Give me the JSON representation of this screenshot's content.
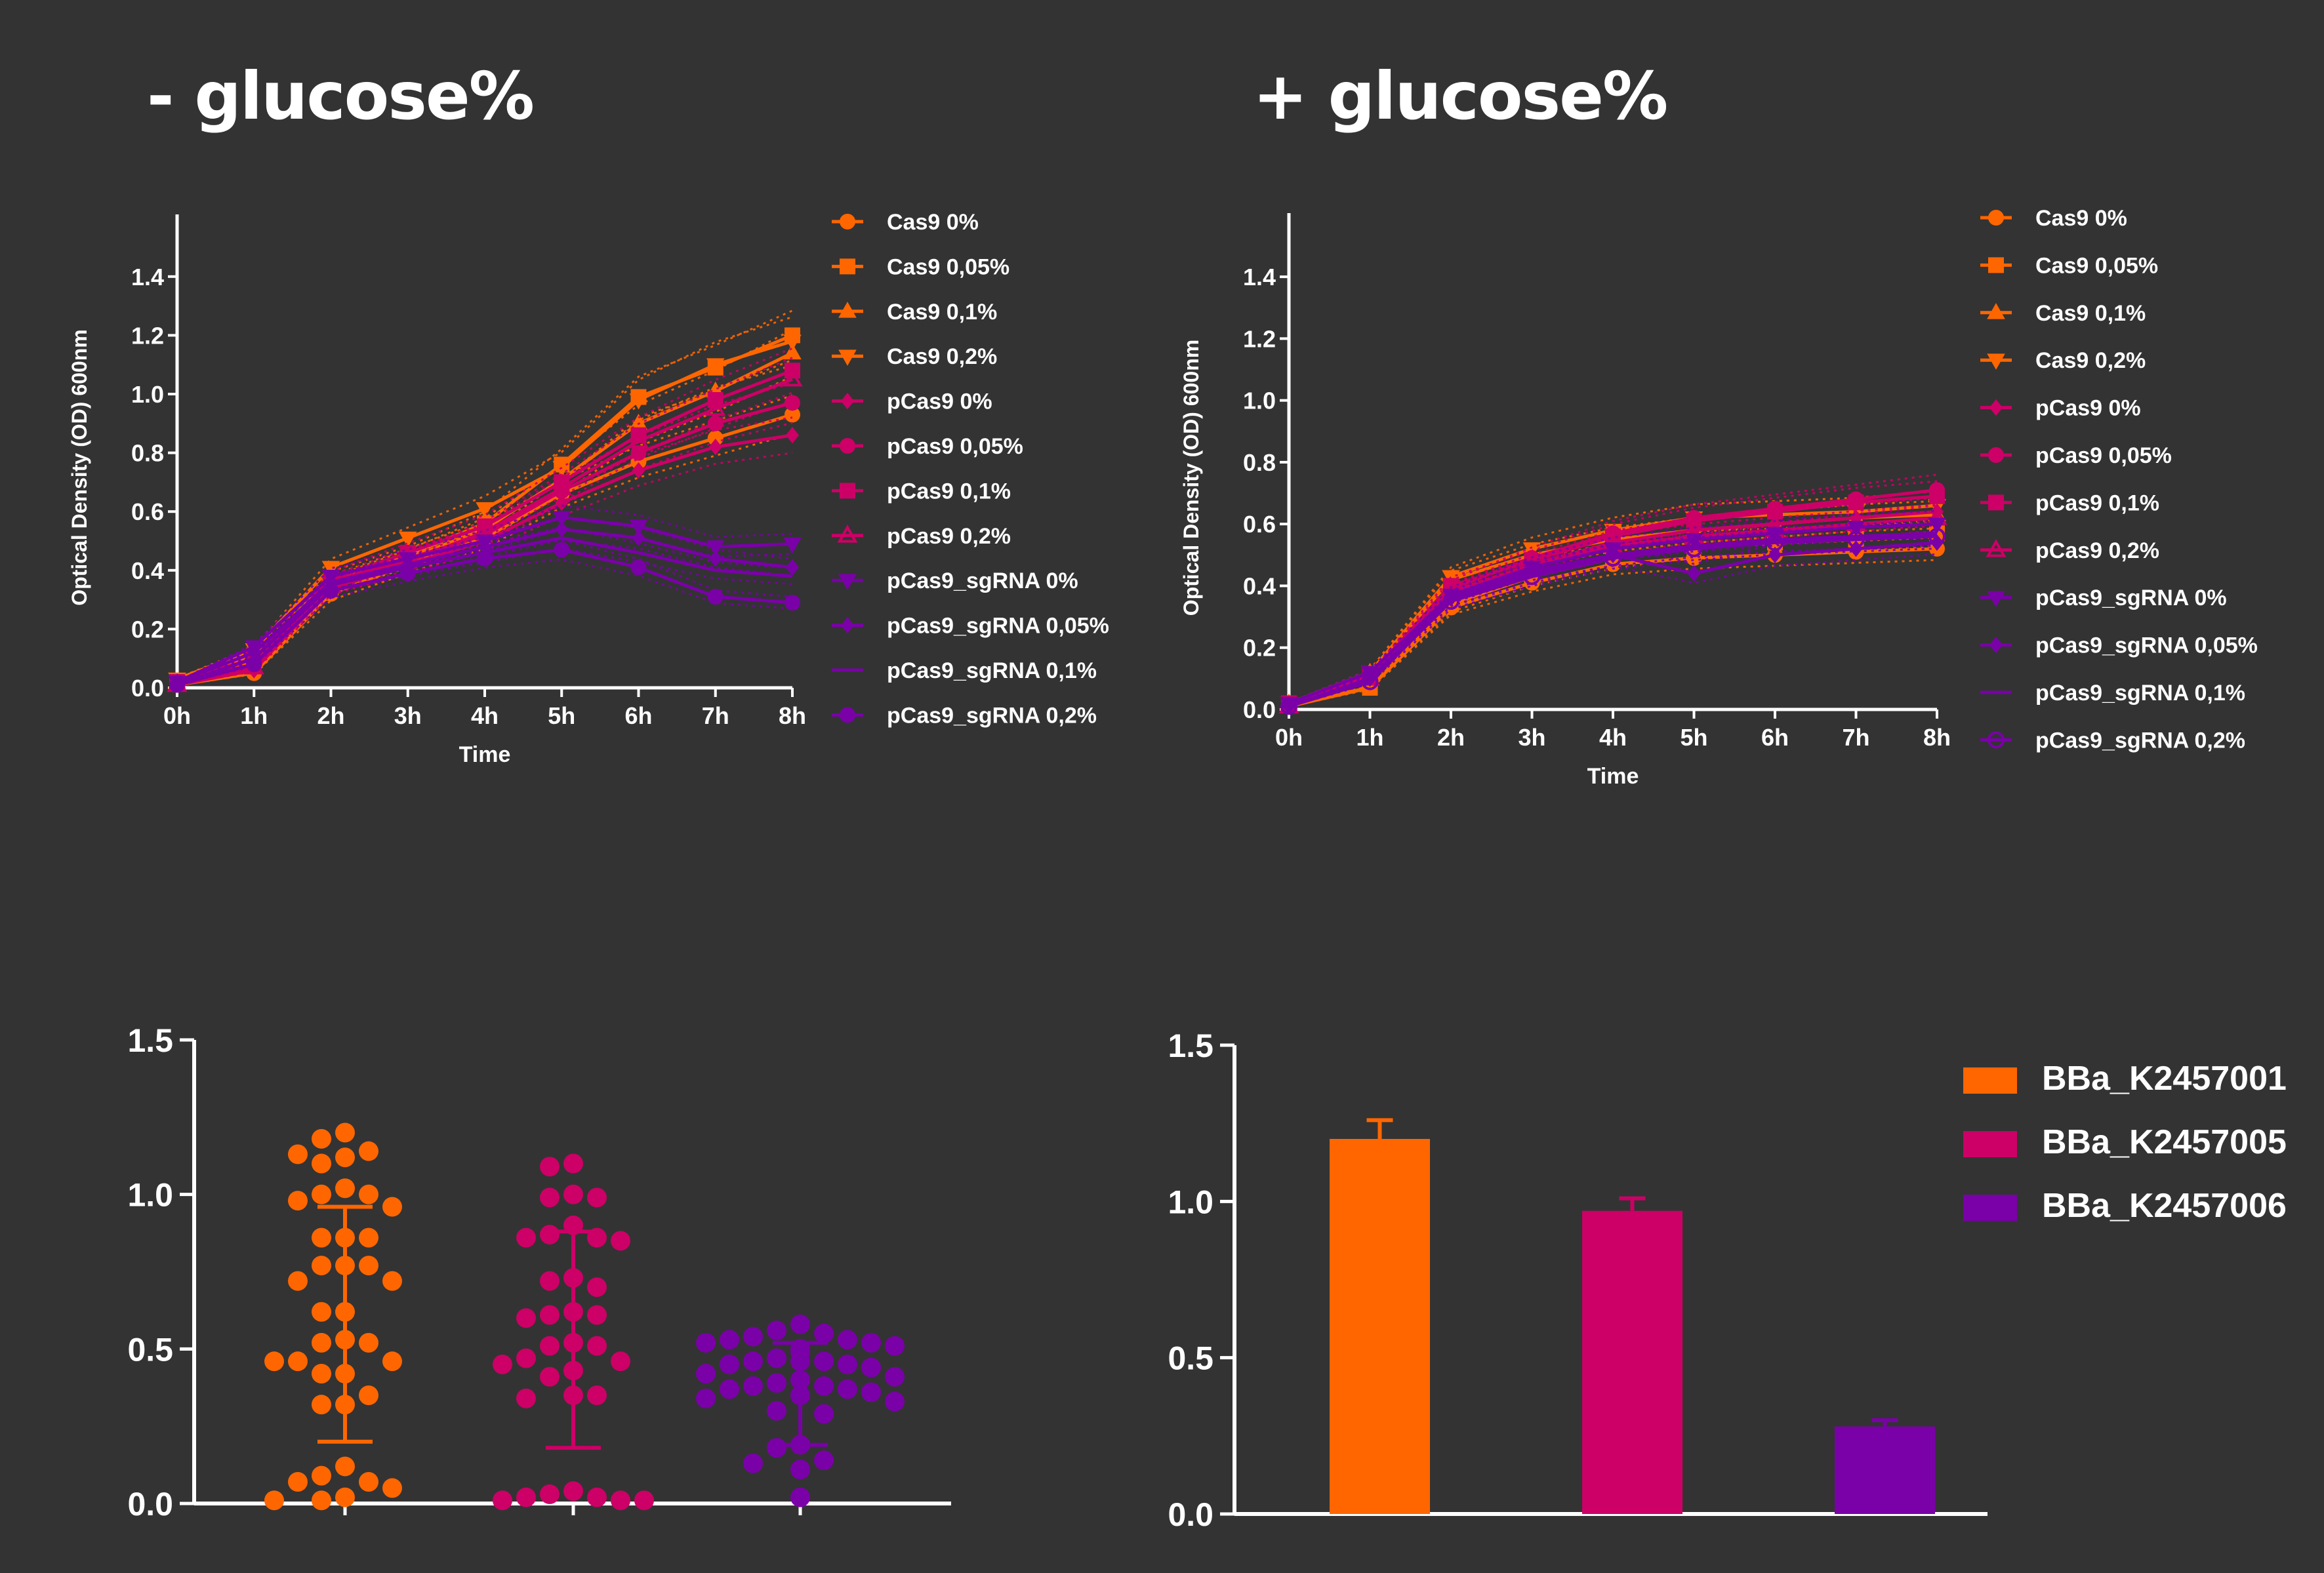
{
  "titles": {
    "left": "- glucose%",
    "right": "+ glucose%"
  },
  "colors": {
    "background": "#333333",
    "axis": "#ffffff",
    "orange": "#ff6600",
    "magenta": "#cc0066",
    "purple": "#7a00a8"
  },
  "chart_data": [
    {
      "type": "line",
      "title": "",
      "xlabel": "Time",
      "ylabel": "Optical Density (OD) 600nm",
      "categories": [
        "0h",
        "1h",
        "2h",
        "3h",
        "4h",
        "5h",
        "6h",
        "7h",
        "8h"
      ],
      "ylim": [
        0,
        1.5
      ],
      "yticks": [
        "0.0",
        "0.2",
        "0.4",
        "0.6",
        "0.8",
        "1.0",
        "1.2",
        "1.4"
      ],
      "legend_position": "right",
      "series": [
        {
          "name": "Cas9 0%",
          "marker": "circle",
          "color": "#ff6600",
          "values": [
            0.01,
            0.05,
            0.32,
            0.42,
            0.51,
            0.66,
            0.77,
            0.85,
            0.93
          ]
        },
        {
          "name": "Cas9 0,05%",
          "marker": "square",
          "color": "#ff6600",
          "values": [
            0.02,
            0.11,
            0.37,
            0.45,
            0.56,
            0.76,
            0.99,
            1.09,
            1.2
          ]
        },
        {
          "name": "Cas9 0,1%",
          "marker": "triangle-up",
          "color": "#ff6600",
          "values": [
            0.02,
            0.09,
            0.35,
            0.44,
            0.54,
            0.71,
            0.9,
            1.01,
            1.14
          ]
        },
        {
          "name": "Cas9 0,2%",
          "marker": "triangle-down",
          "color": "#ff6600",
          "values": [
            0.03,
            0.13,
            0.41,
            0.51,
            0.61,
            0.75,
            0.98,
            1.1,
            1.18
          ]
        },
        {
          "name": "pCas9 0%",
          "marker": "diamond",
          "color": "#cc0066",
          "values": [
            0.01,
            0.06,
            0.34,
            0.42,
            0.5,
            0.63,
            0.74,
            0.82,
            0.86
          ]
        },
        {
          "name": "pCas9 0,05%",
          "marker": "circle",
          "color": "#cc0066",
          "values": [
            0.02,
            0.08,
            0.36,
            0.44,
            0.52,
            0.67,
            0.8,
            0.9,
            0.97
          ]
        },
        {
          "name": "pCas9 0,1%",
          "marker": "square",
          "color": "#cc0066",
          "values": [
            0.02,
            0.1,
            0.37,
            0.46,
            0.55,
            0.7,
            0.86,
            0.98,
            1.08
          ]
        },
        {
          "name": "pCas9 0,2%",
          "marker": "triangle-up-open",
          "color": "#cc0066",
          "values": [
            0.01,
            0.07,
            0.35,
            0.43,
            0.53,
            0.68,
            0.84,
            0.95,
            1.05
          ]
        },
        {
          "name": "pCas9_sgRNA 0%",
          "marker": "triangle-down",
          "color": "#7a00a8",
          "values": [
            0.02,
            0.14,
            0.38,
            0.44,
            0.5,
            0.58,
            0.55,
            0.48,
            0.49
          ]
        },
        {
          "name": "pCas9_sgRNA 0,05%",
          "marker": "diamond",
          "color": "#7a00a8",
          "values": [
            0.02,
            0.12,
            0.36,
            0.42,
            0.48,
            0.54,
            0.51,
            0.44,
            0.41
          ]
        },
        {
          "name": "pCas9_sgRNA 0,1%",
          "marker": "none",
          "color": "#7a00a8",
          "values": [
            0.01,
            0.1,
            0.35,
            0.41,
            0.46,
            0.51,
            0.46,
            0.4,
            0.38
          ]
        },
        {
          "name": "pCas9_sgRNA 0,2%",
          "marker": "circle",
          "color": "#7a00a8",
          "values": [
            0.01,
            0.08,
            0.33,
            0.39,
            0.44,
            0.47,
            0.41,
            0.31,
            0.29
          ]
        }
      ]
    },
    {
      "type": "line",
      "title": "",
      "xlabel": "Time",
      "ylabel": "Optical Density (OD) 600nm",
      "categories": [
        "0h",
        "1h",
        "2h",
        "3h",
        "4h",
        "5h",
        "6h",
        "7h",
        "8h"
      ],
      "ylim": [
        0,
        1.5
      ],
      "yticks": [
        "0.0",
        "0.2",
        "0.4",
        "0.6",
        "0.8",
        "1.0",
        "1.2",
        "1.4"
      ],
      "legend_position": "right",
      "series": [
        {
          "name": "Cas9 0%",
          "marker": "circle",
          "color": "#ff6600",
          "values": [
            0.01,
            0.07,
            0.33,
            0.41,
            0.47,
            0.49,
            0.5,
            0.51,
            0.52
          ]
        },
        {
          "name": "Cas9 0,05%",
          "marker": "square",
          "color": "#ff6600",
          "values": [
            0.02,
            0.07,
            0.34,
            0.43,
            0.49,
            0.53,
            0.54,
            0.55,
            0.57
          ]
        },
        {
          "name": "Cas9 0,1%",
          "marker": "triangle-up",
          "color": "#ff6600",
          "values": [
            0.02,
            0.12,
            0.42,
            0.5,
            0.55,
            0.58,
            0.6,
            0.62,
            0.63
          ]
        },
        {
          "name": "Cas9 0,2%",
          "marker": "triangle-down",
          "color": "#ff6600",
          "values": [
            0.02,
            0.12,
            0.43,
            0.52,
            0.58,
            0.62,
            0.63,
            0.64,
            0.66
          ]
        },
        {
          "name": "pCas9 0%",
          "marker": "diamond",
          "color": "#cc0066",
          "values": [
            0.01,
            0.1,
            0.38,
            0.47,
            0.54,
            0.58,
            0.6,
            0.62,
            0.64
          ]
        },
        {
          "name": "pCas9 0,05%",
          "marker": "circle",
          "color": "#cc0066",
          "values": [
            0.01,
            0.11,
            0.39,
            0.49,
            0.57,
            0.62,
            0.65,
            0.68,
            0.71
          ]
        },
        {
          "name": "pCas9 0,1%",
          "marker": "square",
          "color": "#cc0066",
          "values": [
            0.02,
            0.11,
            0.4,
            0.48,
            0.56,
            0.61,
            0.64,
            0.67,
            0.69
          ]
        },
        {
          "name": "pCas9 0,2%",
          "marker": "triangle-up-open",
          "color": "#cc0066",
          "values": [
            0.01,
            0.1,
            0.38,
            0.46,
            0.53,
            0.56,
            0.58,
            0.6,
            0.62
          ]
        },
        {
          "name": "pCas9_sgRNA 0%",
          "marker": "triangle-down",
          "color": "#7a00a8",
          "values": [
            0.02,
            0.12,
            0.37,
            0.46,
            0.52,
            0.55,
            0.57,
            0.59,
            0.6
          ]
        },
        {
          "name": "pCas9_sgRNA 0,05%",
          "marker": "diamond",
          "color": "#7a00a8",
          "values": [
            0.01,
            0.1,
            0.36,
            0.45,
            0.5,
            0.44,
            0.5,
            0.52,
            0.54
          ]
        },
        {
          "name": "pCas9_sgRNA 0,1%",
          "marker": "none",
          "color": "#7a00a8",
          "values": [
            0.01,
            0.1,
            0.36,
            0.44,
            0.5,
            0.53,
            0.55,
            0.56,
            0.57
          ]
        },
        {
          "name": "pCas9_sgRNA 0,2%",
          "marker": "circle-open",
          "color": "#7a00a8",
          "values": [
            0.01,
            0.09,
            0.35,
            0.43,
            0.49,
            0.52,
            0.54,
            0.55,
            0.56
          ]
        }
      ]
    },
    {
      "type": "scatter",
      "title": "",
      "xlabel": "",
      "ylabel": "",
      "ylim": [
        0,
        1.5
      ],
      "yticks": [
        "0.0",
        "0.5",
        "1.0",
        "1.5"
      ],
      "groups": [
        {
          "name": "",
          "color": "#ff6600",
          "mean": 0.96,
          "error_low": 0.2,
          "values": [
            1.2,
            1.18,
            1.14,
            1.13,
            1.12,
            1.1,
            1.02,
            1.0,
            1.0,
            0.98,
            0.96,
            0.86,
            0.86,
            0.86,
            0.77,
            0.77,
            0.77,
            0.72,
            0.72,
            0.62,
            0.62,
            0.53,
            0.52,
            0.52,
            0.46,
            0.46,
            0.46,
            0.42,
            0.42,
            0.35,
            0.32,
            0.32,
            0.12,
            0.09,
            0.07,
            0.07,
            0.05,
            0.02,
            0.01,
            0.01
          ]
        },
        {
          "name": "",
          "color": "#cc0066",
          "mean": 0.88,
          "error_low": 0.18,
          "values": [
            1.1,
            1.09,
            1.0,
            0.99,
            0.99,
            0.9,
            0.87,
            0.86,
            0.86,
            0.85,
            0.73,
            0.72,
            0.7,
            0.62,
            0.61,
            0.61,
            0.6,
            0.52,
            0.51,
            0.51,
            0.47,
            0.46,
            0.45,
            0.43,
            0.41,
            0.35,
            0.35,
            0.34,
            0.04,
            0.03,
            0.02,
            0.02,
            0.01,
            0.01,
            0.01
          ]
        },
        {
          "name": "",
          "color": "#7a00a8",
          "mean": 0.52,
          "error_low": 0.19,
          "values": [
            0.58,
            0.56,
            0.55,
            0.54,
            0.53,
            0.53,
            0.52,
            0.52,
            0.51,
            0.5,
            0.49,
            0.47,
            0.46,
            0.46,
            0.46,
            0.45,
            0.45,
            0.44,
            0.42,
            0.41,
            0.4,
            0.39,
            0.38,
            0.38,
            0.37,
            0.37,
            0.36,
            0.35,
            0.35,
            0.34,
            0.33,
            0.3,
            0.29,
            0.19,
            0.18,
            0.14,
            0.13,
            0.11,
            0.02
          ]
        }
      ]
    },
    {
      "type": "bar",
      "title": "",
      "xlabel": "",
      "ylabel": "",
      "ylim": [
        0,
        1.5
      ],
      "yticks": [
        "0.0",
        "0.5",
        "1.0",
        "1.5"
      ],
      "categories": [
        "BBa_K2457001",
        "BBa_K2457005",
        "BBa_K2457006"
      ],
      "values": [
        1.2,
        0.97,
        0.28
      ],
      "errors": [
        0.06,
        0.04,
        0.02
      ],
      "colors": [
        "#ff6600",
        "#cc0066",
        "#7a00a8"
      ],
      "legend_position": "top-right"
    }
  ]
}
